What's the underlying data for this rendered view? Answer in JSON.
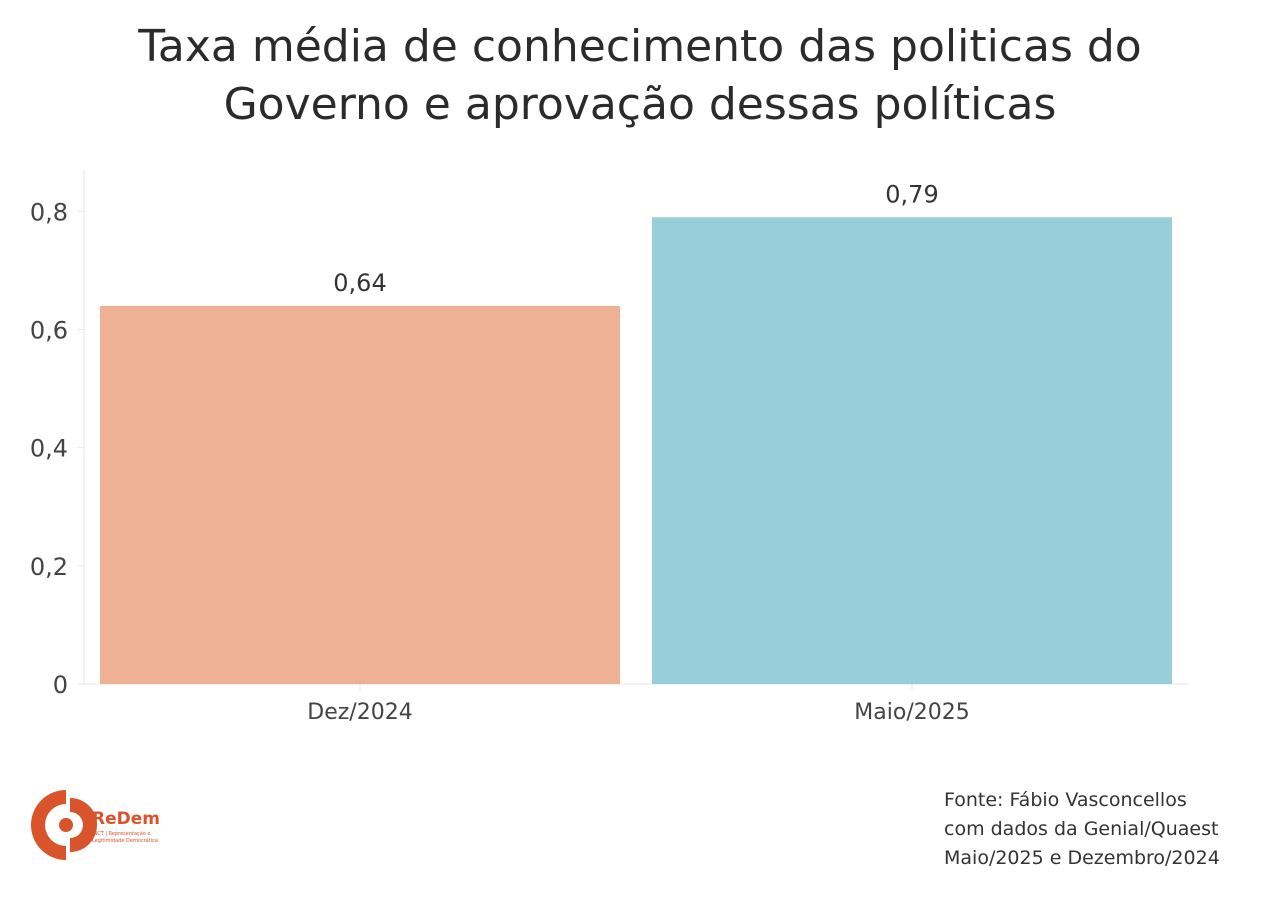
{
  "chart_data": {
    "type": "bar",
    "title_lines": [
      "Taxa média de conhecimento das politicas do",
      "Governo e aprovação dessas políticas"
    ],
    "categories": [
      "Dez/2024",
      "Maio/2025"
    ],
    "values": [
      0.64,
      0.79
    ],
    "value_labels": [
      "0,64",
      "0,79"
    ],
    "bar_colors": [
      "#EEB196",
      "#97CED7"
    ],
    "ylim": [
      0,
      0.87
    ],
    "yticks": [
      0,
      0.2,
      0.4,
      0.6,
      0.8
    ],
    "ytick_labels": [
      "0",
      "0,2",
      "0,4",
      "0,6",
      "0,8"
    ],
    "grid": false,
    "xlabel": "",
    "ylabel": ""
  },
  "source_lines": [
    "Fonte: Fábio Vasconcellos",
    "com dados da Genial/Quaest",
    "Maio/2025 e Dezembro/2024"
  ],
  "logo": {
    "name": "ReDem",
    "tagline_1": "INCT | Representação e",
    "tagline_2": "Legitimidade Democrática",
    "color": "#D9532B"
  }
}
